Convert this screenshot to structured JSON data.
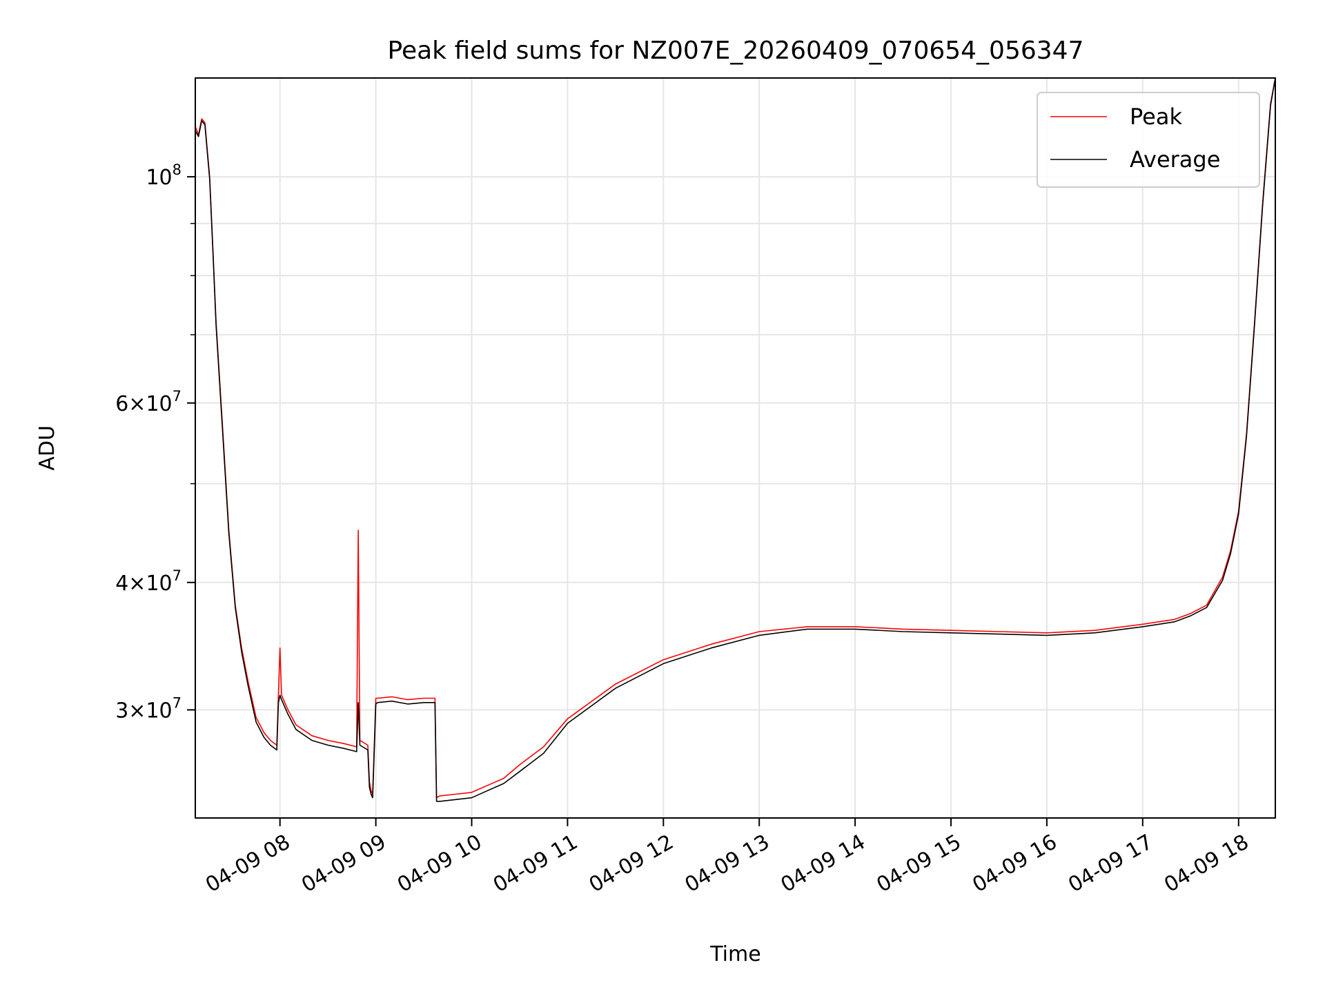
{
  "chart_data": {
    "type": "line",
    "title": "Peak field sums for NZ007E_20260409_070654_056347",
    "xlabel": "Time",
    "ylabel": "ADU",
    "yscale": "log",
    "xlim": [
      "04-09 07:07",
      "04-09 18:23"
    ],
    "ylim": [
      23500000,
      125000000
    ],
    "grid": true,
    "legend_position": "top-right",
    "x_ticks": [
      "04-09 08",
      "04-09 09",
      "04-09 10",
      "04-09 11",
      "04-09 12",
      "04-09 13",
      "04-09 14",
      "04-09 15",
      "04-09 16",
      "04-09 17",
      "04-09 18"
    ],
    "y_ticks": [
      {
        "value": 30000000,
        "mantissa": "3",
        "exponent": "7"
      },
      {
        "value": 40000000,
        "mantissa": "4",
        "exponent": "7"
      },
      {
        "value": 60000000,
        "mantissa": "6",
        "exponent": "7"
      },
      {
        "value": 100000000,
        "mantissa": "",
        "exponent": "8"
      }
    ],
    "y_minor_ticks": [
      50000000,
      70000000,
      80000000,
      90000000
    ],
    "series": [
      {
        "name": "Peak",
        "color": "#ff0000",
        "x": [
          "04-09 07:07",
          "04-09 07:09",
          "04-09 07:11",
          "04-09 07:13",
          "04-09 07:16",
          "04-09 07:18",
          "04-09 07:20",
          "04-09 07:24",
          "04-09 07:28",
          "04-09 07:32",
          "04-09 07:36",
          "04-09 07:40",
          "04-09 07:45",
          "04-09 07:50",
          "04-09 07:54",
          "04-09 07:58",
          "04-09 07:59",
          "04-09 08:00",
          "04-09 08:01",
          "04-09 08:05",
          "04-09 08:10",
          "04-09 08:20",
          "04-09 08:30",
          "04-09 08:40",
          "04-09 08:48",
          "04-09 08:49",
          "04-09 08:50",
          "04-09 08:55",
          "04-09 08:56",
          "04-09 08:57",
          "04-09 08:58",
          "04-09 09:00",
          "04-09 09:01",
          "04-09 09:10",
          "04-09 09:20",
          "04-09 09:30",
          "04-09 09:37",
          "04-09 09:38",
          "04-09 09:40",
          "04-09 09:50",
          "04-09 10:00",
          "04-09 10:10",
          "04-09 10:20",
          "04-09 10:30",
          "04-09 10:45",
          "04-09 11:00",
          "04-09 11:30",
          "04-09 12:00",
          "04-09 12:30",
          "04-09 13:00",
          "04-09 13:30",
          "04-09 14:00",
          "04-09 14:30",
          "04-09 15:00",
          "04-09 15:30",
          "04-09 16:00",
          "04-09 16:30",
          "04-09 17:00",
          "04-09 17:20",
          "04-09 17:30",
          "04-09 17:40",
          "04-09 17:50",
          "04-09 17:55",
          "04-09 18:00",
          "04-09 18:05",
          "04-09 18:10",
          "04-09 18:15",
          "04-09 18:20",
          "04-09 18:23"
        ],
        "values": [
          112000000,
          110000000,
          114000000,
          113000000,
          100000000,
          85000000,
          72000000,
          57000000,
          45000000,
          38000000,
          34500000,
          32000000,
          29500000,
          28500000,
          28000000,
          27700000,
          31000000,
          34500000,
          31000000,
          30000000,
          29000000,
          28300000,
          28000000,
          27800000,
          27600000,
          45000000,
          28000000,
          27700000,
          25500000,
          25000000,
          24800000,
          30800000,
          30800000,
          30900000,
          30700000,
          30800000,
          30800000,
          24600000,
          24700000,
          24800000,
          24900000,
          25300000,
          25700000,
          26500000,
          27600000,
          29400000,
          31800000,
          33600000,
          34800000,
          35800000,
          36200000,
          36200000,
          36000000,
          35900000,
          35800000,
          35700000,
          35900000,
          36400000,
          36800000,
          37300000,
          38000000,
          40500000,
          43000000,
          47000000,
          56000000,
          72000000,
          94000000,
          118000000,
          125000000
        ]
      },
      {
        "name": "Average",
        "color": "#000000",
        "x": [
          "04-09 07:07",
          "04-09 07:09",
          "04-09 07:11",
          "04-09 07:13",
          "04-09 07:16",
          "04-09 07:18",
          "04-09 07:20",
          "04-09 07:24",
          "04-09 07:28",
          "04-09 07:32",
          "04-09 07:36",
          "04-09 07:40",
          "04-09 07:45",
          "04-09 07:50",
          "04-09 07:54",
          "04-09 07:58",
          "04-09 07:59",
          "04-09 08:00",
          "04-09 08:01",
          "04-09 08:05",
          "04-09 08:10",
          "04-09 08:20",
          "04-09 08:30",
          "04-09 08:40",
          "04-09 08:48",
          "04-09 08:49",
          "04-09 08:50",
          "04-09 08:55",
          "04-09 08:56",
          "04-09 08:57",
          "04-09 08:58",
          "04-09 09:00",
          "04-09 09:01",
          "04-09 09:10",
          "04-09 09:20",
          "04-09 09:30",
          "04-09 09:37",
          "04-09 09:38",
          "04-09 09:40",
          "04-09 09:50",
          "04-09 10:00",
          "04-09 10:10",
          "04-09 10:20",
          "04-09 10:30",
          "04-09 10:45",
          "04-09 11:00",
          "04-09 11:30",
          "04-09 12:00",
          "04-09 12:30",
          "04-09 13:00",
          "04-09 13:30",
          "04-09 14:00",
          "04-09 14:30",
          "04-09 15:00",
          "04-09 15:30",
          "04-09 16:00",
          "04-09 16:30",
          "04-09 17:00",
          "04-09 17:20",
          "04-09 17:30",
          "04-09 17:40",
          "04-09 17:50",
          "04-09 17:55",
          "04-09 18:00",
          "04-09 18:05",
          "04-09 18:10",
          "04-09 18:15",
          "04-09 18:20",
          "04-09 18:23"
        ],
        "values": [
          111000000,
          109500000,
          113500000,
          112500000,
          99500000,
          84500000,
          71500000,
          56500000,
          44700000,
          37800000,
          34200000,
          31700000,
          29200000,
          28200000,
          27700000,
          27400000,
          30500000,
          31000000,
          30700000,
          29700000,
          28700000,
          28000000,
          27700000,
          27500000,
          27300000,
          30500000,
          27700000,
          27400000,
          25200000,
          24800000,
          24600000,
          30400000,
          30500000,
          30600000,
          30400000,
          30500000,
          30500000,
          24400000,
          24400000,
          24500000,
          24600000,
          25000000,
          25400000,
          26100000,
          27200000,
          29100000,
          31500000,
          33300000,
          34500000,
          35500000,
          36000000,
          36000000,
          35800000,
          35700000,
          35600000,
          35500000,
          35700000,
          36200000,
          36600000,
          37100000,
          37800000,
          40200000,
          42700000,
          46700000,
          55700000,
          71600000,
          93500000,
          117500000,
          125000000
        ]
      }
    ]
  }
}
